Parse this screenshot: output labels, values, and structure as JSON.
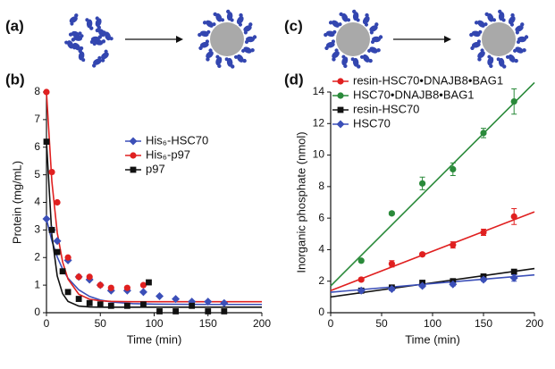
{
  "schematics": [
    {
      "label": "(a)"
    },
    {
      "label": "(c)"
    }
  ],
  "chart_data": [
    {
      "type": "scatter",
      "label": "(b)",
      "xlabel": "Time (min)",
      "ylabel": "Protein (mg/mL)",
      "xlim": [
        0,
        200
      ],
      "xticks": [
        0,
        50,
        100,
        150,
        200
      ],
      "ylim": [
        0,
        8
      ],
      "yticks": [
        0,
        1,
        2,
        3,
        4,
        5,
        6,
        7,
        8
      ],
      "legend": "upper right",
      "series": [
        {
          "name": "His₆-HSC70",
          "color": "#3b4fb8",
          "marker": "diamond",
          "x": [
            0,
            5,
            10,
            20,
            30,
            40,
            50,
            60,
            75,
            90,
            105,
            120,
            135,
            150,
            165
          ],
          "values": [
            3.4,
            3.0,
            2.6,
            1.9,
            1.3,
            1.2,
            1.0,
            0.8,
            0.8,
            0.75,
            0.6,
            0.5,
            0.4,
            0.4,
            0.35
          ]
        },
        {
          "name": "His₆-p97",
          "color": "#e02020",
          "marker": "circle",
          "x": [
            0,
            5,
            10,
            20,
            30,
            40,
            50,
            60,
            75,
            90
          ],
          "values": [
            8.0,
            5.1,
            4.0,
            2.0,
            1.3,
            1.3,
            1.0,
            0.9,
            0.9,
            1.0
          ]
        },
        {
          "name": "p97",
          "color": "#111111",
          "marker": "square",
          "x": [
            0,
            5,
            10,
            15,
            20,
            30,
            40,
            50,
            60,
            75,
            90,
            95,
            105,
            120,
            135,
            150,
            165
          ],
          "values": [
            6.2,
            3.0,
            2.2,
            1.5,
            0.75,
            0.5,
            0.35,
            0.3,
            0.25,
            0.25,
            0.3,
            1.1,
            0.05,
            0.05,
            0.25,
            0.05,
            0.05
          ]
        }
      ],
      "fits": [
        {
          "color": "#3b4fb8",
          "x": [
            0,
            5,
            10,
            15,
            20,
            30,
            40,
            50,
            60,
            80,
            100,
            150,
            200
          ],
          "values": [
            3.4,
            2.61,
            2.02,
            1.58,
            1.25,
            0.83,
            0.59,
            0.46,
            0.39,
            0.33,
            0.31,
            0.3,
            0.3
          ]
        },
        {
          "color": "#e02020",
          "x": [
            0,
            5,
            10,
            15,
            20,
            30,
            40,
            50,
            60,
            80,
            100,
            150,
            200
          ],
          "values": [
            8.0,
            4.76,
            2.9,
            1.84,
            1.22,
            0.67,
            0.49,
            0.43,
            0.41,
            0.4,
            0.4,
            0.4,
            0.4
          ]
        },
        {
          "color": "#111111",
          "x": [
            0,
            5,
            10,
            15,
            20,
            30,
            40,
            50,
            60,
            80,
            100,
            150,
            200
          ],
          "values": [
            6.2,
            2.81,
            1.33,
            0.69,
            0.41,
            0.24,
            0.21,
            0.2,
            0.2,
            0.2,
            0.2,
            0.2,
            0.2
          ]
        }
      ]
    },
    {
      "type": "scatter",
      "label": "(d)",
      "xlabel": "Time (min)",
      "ylabel": "Inorganic phosphate (nmol)",
      "xlim": [
        0,
        200
      ],
      "xticks": [
        0,
        50,
        100,
        150,
        200
      ],
      "ylim": [
        0,
        14
      ],
      "yticks": [
        0,
        2,
        4,
        6,
        8,
        10,
        12,
        14
      ],
      "legend": "upper left",
      "series": [
        {
          "name": "resin-HSC70•DNAJB8•BAG1",
          "color": "#e02020",
          "marker": "circle",
          "x": [
            30,
            60,
            90,
            120,
            150,
            180
          ],
          "values": [
            2.1,
            3.1,
            3.7,
            4.3,
            5.1,
            6.1
          ],
          "errors": [
            0.1,
            0.2,
            0.1,
            0.2,
            0.2,
            0.5
          ]
        },
        {
          "name": "HSC70•DNAJB8•BAG1",
          "color": "#2a8a3a",
          "marker": "circle",
          "x": [
            30,
            60,
            90,
            120,
            150,
            180
          ],
          "values": [
            3.3,
            6.3,
            8.2,
            9.1,
            11.4,
            13.4
          ],
          "errors": [
            0.1,
            0.1,
            0.4,
            0.4,
            0.3,
            0.8
          ]
        },
        {
          "name": "resin-HSC70",
          "color": "#111111",
          "marker": "square",
          "x": [
            30,
            60,
            90,
            120,
            150,
            180
          ],
          "values": [
            1.4,
            1.6,
            1.9,
            2.0,
            2.3,
            2.6
          ],
          "errors": [
            0.1,
            0.1,
            0.1,
            0.1,
            0.1,
            0.1
          ]
        },
        {
          "name": "HSC70",
          "color": "#3b4fb8",
          "marker": "diamond",
          "x": [
            30,
            60,
            90,
            120,
            150,
            180
          ],
          "values": [
            1.4,
            1.5,
            1.7,
            1.8,
            2.1,
            2.2
          ],
          "errors": [
            0.1,
            0.1,
            0.1,
            0.1,
            0.1,
            0.2
          ]
        }
      ],
      "fits": [
        {
          "color": "#e02020",
          "x": [
            0,
            200
          ],
          "values": [
            1.4,
            6.4
          ]
        },
        {
          "color": "#2a8a3a",
          "x": [
            0,
            200
          ],
          "values": [
            1.7,
            14.6
          ]
        },
        {
          "color": "#111111",
          "x": [
            0,
            200
          ],
          "values": [
            1.0,
            2.8
          ]
        },
        {
          "color": "#3b4fb8",
          "x": [
            0,
            200
          ],
          "values": [
            1.3,
            2.4
          ]
        }
      ]
    }
  ]
}
